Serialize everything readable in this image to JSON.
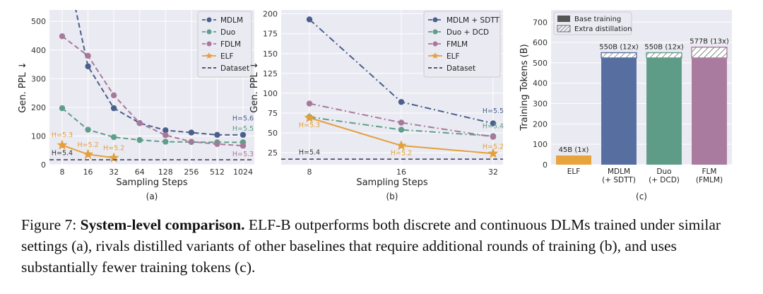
{
  "caption": {
    "prefix": "Figure 7: ",
    "bold": "System-level comparison.",
    "rest": " ELF-B outperforms both discrete and continuous DLMs trained under similar settings (a), rivals distilled variants of other baselines that require additional rounds of training (b), and uses substantially fewer training tokens (c)."
  },
  "chart_data": [
    {
      "type": "line",
      "panel_label": "(a)",
      "xlabel": "Sampling Steps",
      "ylabel": "Gen. PPL ↓",
      "x_scale": "log2",
      "x": [
        8,
        16,
        32,
        64,
        128,
        256,
        512,
        1024
      ],
      "x_ticklabels": [
        "8",
        "16",
        "32",
        "64",
        "128",
        "256",
        "512",
        "1024"
      ],
      "ylim": [
        0,
        540
      ],
      "yticks": [
        0,
        100,
        200,
        300,
        400,
        500
      ],
      "grid": true,
      "legend_position": "top-right",
      "legend": [
        "MDLM",
        "Duo",
        "FDLM",
        "ELF",
        "Dataset"
      ],
      "series": [
        {
          "name": "MDLM",
          "color": "#4a5f8c",
          "style": "dashed",
          "marker": "circle",
          "points": [
            [
              8,
              760
            ],
            [
              16,
              343
            ],
            [
              32,
              197
            ],
            [
              64,
              145
            ],
            [
              128,
              120
            ],
            [
              256,
              112
            ],
            [
              512,
              104
            ],
            [
              1024,
              104
            ]
          ]
        },
        {
          "name": "Duo",
          "color": "#5e9e8a",
          "style": "dashed",
          "marker": "circle",
          "points": [
            [
              8,
              197
            ],
            [
              16,
              122
            ],
            [
              32,
              96
            ],
            [
              64,
              86
            ],
            [
              128,
              80
            ],
            [
              256,
              79
            ],
            [
              512,
              78
            ],
            [
              1024,
              78
            ]
          ]
        },
        {
          "name": "FDLM",
          "color": "#a8789b",
          "style": "dashed",
          "marker": "circle",
          "points": [
            [
              8,
              448
            ],
            [
              16,
              380
            ],
            [
              32,
              242
            ],
            [
              64,
              145
            ],
            [
              128,
              103
            ],
            [
              256,
              80
            ],
            [
              512,
              72
            ],
            [
              1024,
              66
            ]
          ]
        },
        {
          "name": "ELF",
          "color": "#e3a03d",
          "style": "solid",
          "marker": "star",
          "points": [
            [
              8,
              68
            ],
            [
              16,
              36
            ],
            [
              32,
              24
            ]
          ]
        },
        {
          "name": "Dataset",
          "color": "#444466",
          "style": "dashed",
          "marker": "none",
          "hline": 17
        }
      ],
      "annotations": [
        {
          "text": "H=5.3",
          "x": 8,
          "y": 96,
          "color": "#e3a03d"
        },
        {
          "text": "H=5.2",
          "x": 16,
          "y": 62,
          "color": "#e3a03d"
        },
        {
          "text": "H=5.2",
          "x": 32,
          "y": 50,
          "color": "#e3a03d"
        },
        {
          "text": "H=5.4",
          "x": 8,
          "y": 33,
          "color": "#333333"
        },
        {
          "text": "H=5.6",
          "x": 1024,
          "y": 154,
          "color": "#4a5f8c"
        },
        {
          "text": "H=5.5",
          "x": 1024,
          "y": 118,
          "color": "#5e9e8a"
        },
        {
          "text": "H=5.3",
          "x": 1024,
          "y": 30,
          "color": "#a8789b"
        }
      ]
    },
    {
      "type": "line",
      "panel_label": "(b)",
      "xlabel": "Sampling Steps",
      "ylabel": "Gen. PPL ↓",
      "x_scale": "log2",
      "x": [
        8,
        16,
        32
      ],
      "x_ticklabels": [
        "8",
        "16",
        "32"
      ],
      "ylim": [
        10,
        205
      ],
      "yticks": [
        25,
        50,
        75,
        100,
        125,
        150,
        175,
        200
      ],
      "grid": true,
      "legend_position": "top-right",
      "legend": [
        "MDLM + SDTT",
        "Duo + DCD",
        "FMLM",
        "ELF",
        "Dataset"
      ],
      "series": [
        {
          "name": "MDLM + SDTT",
          "color": "#4a5f8c",
          "style": "dashdot",
          "marker": "circle",
          "points": [
            [
              8,
              193
            ],
            [
              16,
              89
            ],
            [
              32,
              62
            ]
          ]
        },
        {
          "name": "Duo + DCD",
          "color": "#5e9e8a",
          "style": "dashdot",
          "marker": "circle",
          "points": [
            [
              8,
              70
            ],
            [
              16,
              54
            ],
            [
              32,
              46
            ]
          ]
        },
        {
          "name": "FMLM",
          "color": "#a8789b",
          "style": "dashdot",
          "marker": "circle",
          "points": [
            [
              8,
              87
            ],
            [
              16,
              63
            ],
            [
              32,
              45
            ]
          ]
        },
        {
          "name": "ELF",
          "color": "#e3a03d",
          "style": "solid",
          "marker": "star",
          "points": [
            [
              8,
              69
            ],
            [
              16,
              34
            ],
            [
              32,
              24
            ]
          ]
        },
        {
          "name": "Dataset",
          "color": "#444466",
          "style": "dashed",
          "marker": "none",
          "hline": 17
        }
      ],
      "annotations": [
        {
          "text": "H=5.3",
          "x": 8,
          "y": 57,
          "color": "#e3a03d"
        },
        {
          "text": "H=5.2",
          "x": 16,
          "y": 22,
          "color": "#e3a03d"
        },
        {
          "text": "H=5.2",
          "x": 32,
          "y": 30,
          "color": "#e3a03d"
        },
        {
          "text": "H=5.4",
          "x": 8,
          "y": 23,
          "color": "#333333"
        },
        {
          "text": "H=5.5",
          "x": 32,
          "y": 75,
          "color": "#4a5f8c"
        },
        {
          "text": "H=5.4",
          "x": 32,
          "y": 56,
          "color": "#5e9e8a"
        }
      ]
    },
    {
      "type": "bar",
      "panel_label": "(c)",
      "ylabel": "Training Tokens (B)",
      "ylim": [
        0,
        760
      ],
      "yticks": [
        0,
        100,
        200,
        300,
        400,
        500,
        600,
        700
      ],
      "grid": true,
      "legend_position": "top-left",
      "legend": [
        "Base training",
        "Extra distillation"
      ],
      "categories": [
        "ELF",
        "MDLM\n(+ SDTT)",
        "Duo\n(+ DCD)",
        "FLM\n(FMLM)"
      ],
      "series": [
        {
          "name": "Base training",
          "values": [
            45,
            524,
            524,
            524
          ]
        },
        {
          "name": "Extra distillation",
          "values": [
            0,
            26,
            26,
            53
          ]
        }
      ],
      "colors": [
        "#e8a33d",
        "#566fa0",
        "#5f9c88",
        "#a97c9f"
      ],
      "bar_labels": [
        "45B  (1x)",
        "550B  (12x)",
        "550B  (12x)",
        "577B  (13x)"
      ]
    }
  ]
}
